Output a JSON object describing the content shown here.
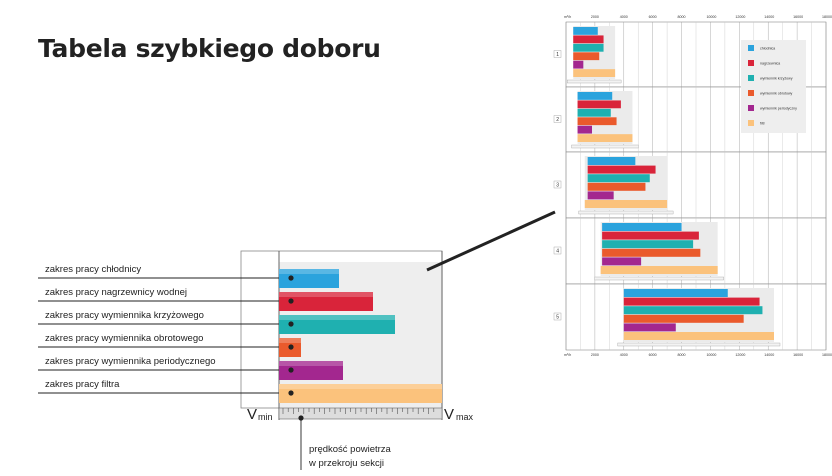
{
  "title": "Tabela szybkiego doboru",
  "schematic": {
    "labels": [
      "zakres pracy chłodnicy",
      "zakres pracy nagrzewnicy wodnej",
      "zakres pracy wymiennika krzyżowego",
      "zakres pracy wymiennika obrotowego",
      "zakres pracy wymiennika periodycznego",
      "zakres pracy filtra"
    ],
    "vmin": "V",
    "vmin_sub": "min",
    "vmax": "V",
    "vmax_sub": "max",
    "speed_note": [
      "prędkość powietrza",
      "w przekroju sekcji"
    ]
  },
  "colors": {
    "blue": "#2ba3dd",
    "red": "#d9243a",
    "teal": "#1fb0b0",
    "orange": "#ea5a2c",
    "purple": "#a3278f",
    "peach": "#fbc27c"
  },
  "chart_data": {
    "type": "bar",
    "orientation": "horizontal",
    "x_unit": "m³/h",
    "x_ticks": [
      2000,
      4000,
      6000,
      8000,
      10000,
      12000,
      14000,
      16000,
      18000
    ],
    "xlim": [
      0,
      18000
    ],
    "legend": [
      "chłodnica",
      "nagrzewnica",
      "wymiennik krzyżowy",
      "wymiennik obrotowy",
      "wymiennik periodyczny",
      "filtr"
    ],
    "legend_placement": "top-right",
    "sections": [
      {
        "label": "1",
        "series": [
          [
            500,
            2200
          ],
          [
            500,
            2600
          ],
          [
            500,
            2600
          ],
          [
            500,
            2300
          ],
          [
            500,
            1200
          ],
          [
            500,
            3400
          ]
        ]
      },
      {
        "label": "2",
        "series": [
          [
            800,
            3200
          ],
          [
            800,
            3800
          ],
          [
            800,
            3100
          ],
          [
            800,
            3500
          ],
          [
            800,
            1800
          ],
          [
            800,
            4600
          ]
        ]
      },
      {
        "label": "3",
        "series": [
          [
            1500,
            4800
          ],
          [
            1500,
            6200
          ],
          [
            1500,
            5800
          ],
          [
            1500,
            5500
          ],
          [
            1500,
            3300
          ],
          [
            1300,
            7000
          ]
        ]
      },
      {
        "label": "4",
        "series": [
          [
            2500,
            8000
          ],
          [
            2500,
            9200
          ],
          [
            2500,
            8800
          ],
          [
            2500,
            9300
          ],
          [
            2500,
            5200
          ],
          [
            2400,
            10500
          ]
        ]
      },
      {
        "label": "5",
        "series": [
          [
            4000,
            11200
          ],
          [
            4000,
            13400
          ],
          [
            4000,
            13600
          ],
          [
            4000,
            12300
          ],
          [
            4000,
            7600
          ],
          [
            4000,
            14400
          ]
        ]
      }
    ]
  }
}
